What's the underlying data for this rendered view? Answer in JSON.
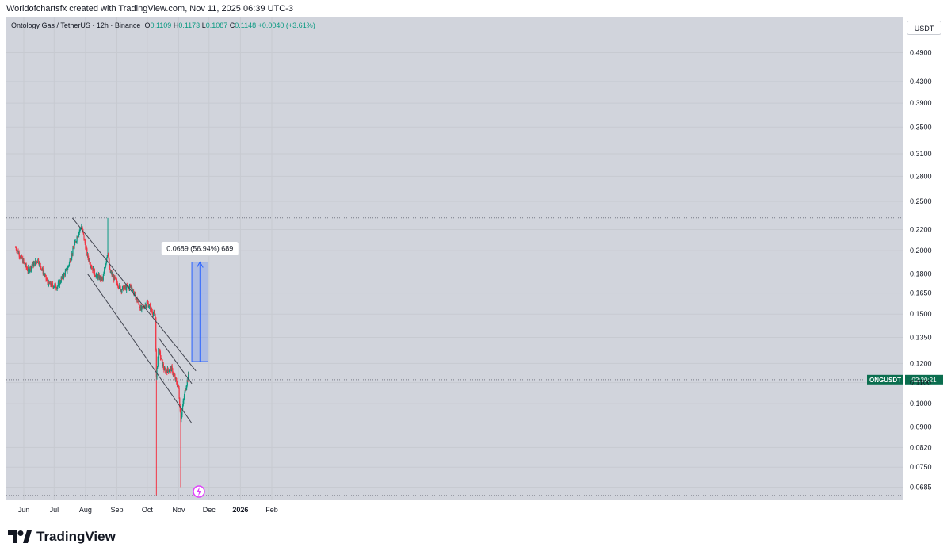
{
  "header": {
    "attribution": "Worldofchartsfx created with TradingView.com, Nov 11, 2025 06:39 UTC-3"
  },
  "legend": {
    "symbol_text": "Ontology Gas / TetherUS · 12h · Binance",
    "open_label": "O",
    "open_value": "0.1109",
    "high_label": "H",
    "high_value": "0.1173",
    "low_label": "L",
    "low_value": "0.1087",
    "close_label": "C",
    "close_value": "0.1148",
    "change": "+0.0040 (+3.61%)"
  },
  "currency_button": "USDT",
  "price_axis_ticks": [
    "0.4900",
    "0.4300",
    "0.3900",
    "0.3500",
    "0.3100",
    "0.2800",
    "0.2500",
    "0.2200",
    "0.2000",
    "0.1800",
    "0.1650",
    "0.1500",
    "0.1350",
    "0.1200",
    "0.1100",
    "0.1000",
    "0.0900",
    "0.0820",
    "0.0750",
    "0.0685"
  ],
  "time_axis_labels": [
    {
      "label": "Jun",
      "bold": false
    },
    {
      "label": "Jul",
      "bold": false
    },
    {
      "label": "Aug",
      "bold": false
    },
    {
      "label": "Sep",
      "bold": false
    },
    {
      "label": "Oct",
      "bold": false
    },
    {
      "label": "Nov",
      "bold": false
    },
    {
      "label": "Dec",
      "bold": false
    },
    {
      "label": "2026",
      "bold": true
    },
    {
      "label": "Feb",
      "bold": false
    }
  ],
  "price_tag": {
    "symbol": "ONGUSDT",
    "countdown": "02:20:21",
    "price": 0.1115,
    "color": "#0b6e4f"
  },
  "measure_label": "0.0689 (56.94%) 689",
  "footer": {
    "brand": "TradingView"
  },
  "colors": {
    "up": "#089981",
    "down": "#f23645",
    "channel": "#434651",
    "measure": "#2962ff"
  },
  "chart_data": {
    "type": "candlestick",
    "title": "Ontology Gas / TetherUS · 12h · Binance",
    "scale": "log",
    "ylim": [
      0.0662,
      0.52
    ],
    "x_range": [
      "2025-05-24",
      "2026-02-28"
    ],
    "series": [
      {
        "date": "2025-05-24",
        "close": 0.203
      },
      {
        "date": "2025-06-05",
        "close": 0.183
      },
      {
        "date": "2025-06-15",
        "close": 0.192
      },
      {
        "date": "2025-06-25",
        "close": 0.172
      },
      {
        "date": "2025-07-04",
        "close": 0.17
      },
      {
        "date": "2025-07-14",
        "close": 0.184
      },
      {
        "date": "2025-07-24",
        "close": 0.214
      },
      {
        "date": "2025-07-28",
        "close": 0.224
      },
      {
        "date": "2025-08-03",
        "close": 0.195
      },
      {
        "date": "2025-08-10",
        "close": 0.18
      },
      {
        "date": "2025-08-18",
        "close": 0.175
      },
      {
        "date": "2025-08-23",
        "close": 0.2
      },
      {
        "date": "2025-08-25",
        "close": 0.182
      },
      {
        "date": "2025-09-05",
        "close": 0.168
      },
      {
        "date": "2025-09-15",
        "close": 0.17
      },
      {
        "date": "2025-09-25",
        "close": 0.153
      },
      {
        "date": "2025-10-01",
        "close": 0.158
      },
      {
        "date": "2025-10-09",
        "close": 0.148
      },
      {
        "date": "2025-10-10",
        "close": 0.112
      },
      {
        "date": "2025-10-12",
        "close": 0.128
      },
      {
        "date": "2025-10-18",
        "close": 0.116
      },
      {
        "date": "2025-10-25",
        "close": 0.117
      },
      {
        "date": "2025-11-01",
        "close": 0.107
      },
      {
        "date": "2025-11-03",
        "close": 0.093
      },
      {
        "date": "2025-11-07",
        "close": 0.105
      },
      {
        "date": "2025-11-11",
        "close": 0.1148
      }
    ],
    "wick_extremes": [
      {
        "date": "2025-08-23",
        "high": 0.232
      },
      {
        "date": "2025-10-10",
        "low": 0.066
      },
      {
        "date": "2025-11-03",
        "low": 0.0685
      }
    ],
    "channels": [
      {
        "from": {
          "date": "2025-07-19",
          "price": 0.232
        },
        "to": {
          "date": "2025-11-18",
          "price": 0.116
        }
      },
      {
        "from": {
          "date": "2025-08-03",
          "price": 0.18
        },
        "to": {
          "date": "2025-11-14",
          "price": 0.0915
        }
      },
      {
        "from": {
          "date": "2025-10-12",
          "price": 0.135
        },
        "to": {
          "date": "2025-11-14",
          "price": 0.1095
        }
      }
    ],
    "measurement": {
      "from_date": "2025-11-14",
      "to_date": "2025-11-30",
      "start_price": 0.121,
      "end_price": 0.1899,
      "delta": 0.0689,
      "percent": 56.94,
      "ticks": 689
    },
    "last_price": 0.1115,
    "dotted_levels": [
      0.232,
      0.1115,
      0.066
    ]
  }
}
